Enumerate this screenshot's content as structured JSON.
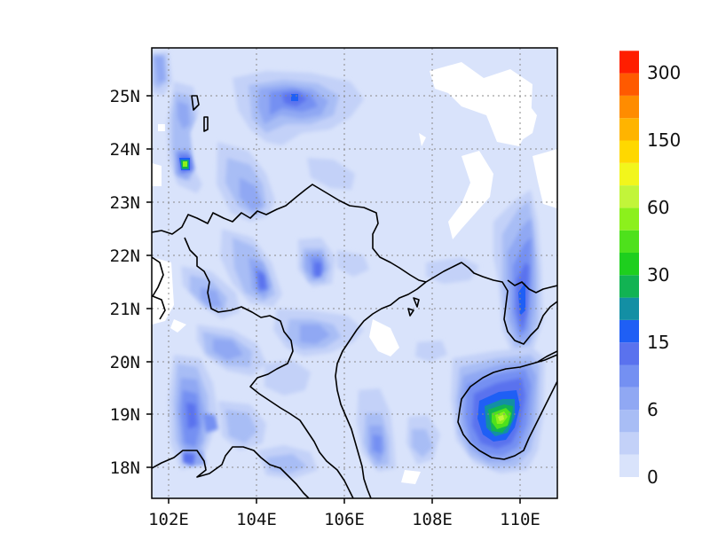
{
  "map": {
    "lon_range": [
      101.65,
      110.85
    ],
    "lat_range": [
      17.45,
      25.9
    ],
    "x_tick_labels": [
      "102E",
      "104E",
      "106E",
      "108E",
      "110E"
    ],
    "x_tick_values": [
      102,
      104,
      106,
      108,
      110
    ],
    "y_tick_labels": [
      "18N",
      "19N",
      "20N",
      "21N",
      "22N",
      "23N",
      "24N",
      "25N"
    ],
    "y_tick_values": [
      18,
      19,
      20,
      21,
      22,
      23,
      24,
      25
    ],
    "gridlines": true
  },
  "colorbar": {
    "labels": [
      "0",
      "6",
      "15",
      "30",
      "60",
      "150",
      "300"
    ],
    "colors": [
      "#d9e3fb",
      "#c3d1f8",
      "#a8bdf5",
      "#90a8f3",
      "#7490f2",
      "#5a72ee",
      "#1f5ff5",
      "#138fa4",
      "#12b353",
      "#1ecf1e",
      "#4ee11c",
      "#8cf01c",
      "#c2f53a",
      "#f2f61c",
      "#ffd800",
      "#ffb400",
      "#ff8c00",
      "#ff5a00",
      "#ff1e00"
    ]
  }
}
